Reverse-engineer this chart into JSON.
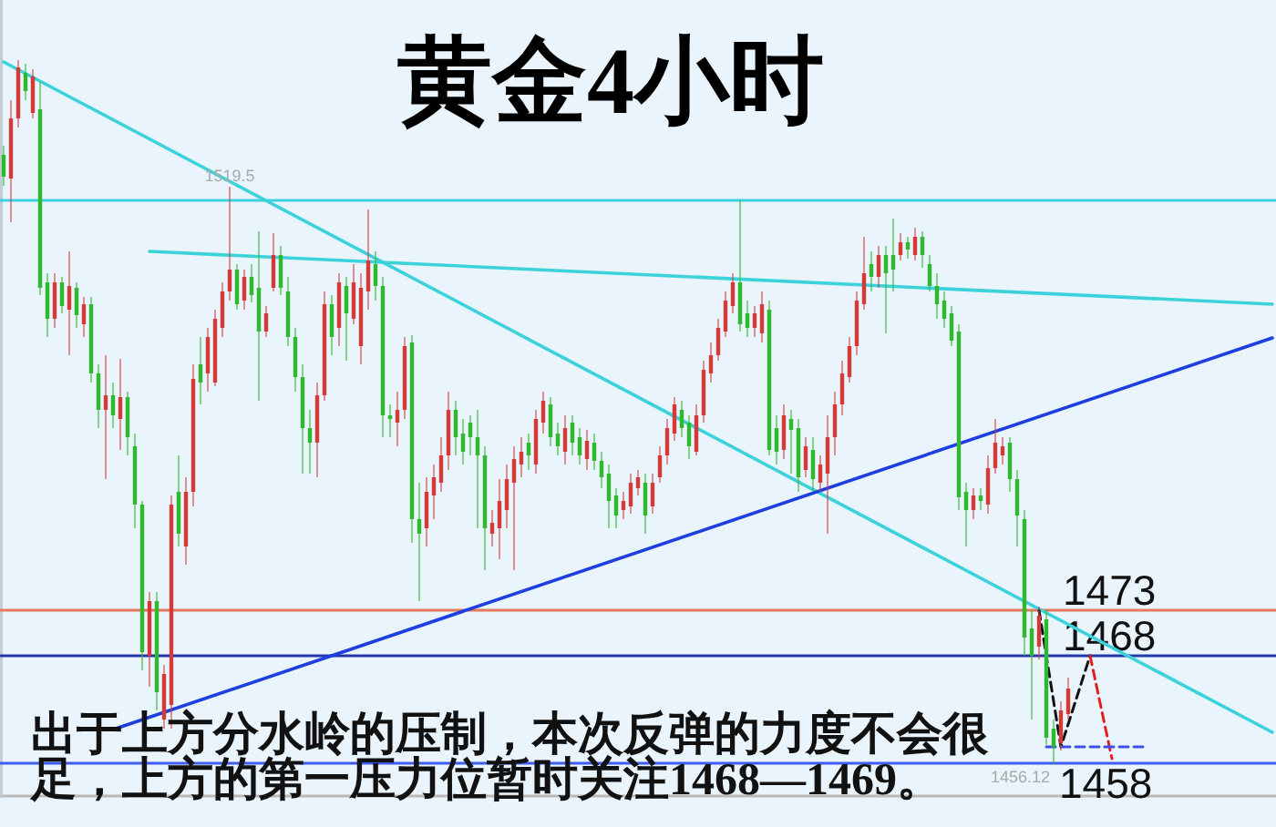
{
  "chart_data": {
    "type": "candlestick",
    "title": "黄金4小时",
    "categories": [
      null,
      null,
      null,
      null,
      null,
      null,
      null,
      null,
      null,
      null,
      null,
      null,
      null,
      null,
      null,
      null,
      null,
      null,
      null,
      null,
      null,
      null,
      null,
      null,
      null,
      null,
      null,
      null,
      null,
      null,
      null,
      null,
      null,
      null,
      null,
      null,
      null,
      null,
      null,
      null,
      null,
      null,
      null,
      null,
      null,
      null,
      null,
      null,
      null,
      null,
      null,
      null,
      null,
      null,
      null,
      null,
      null,
      null,
      null,
      null,
      null,
      null,
      null,
      null,
      null,
      null,
      null,
      null,
      null,
      null,
      null,
      null,
      null,
      null,
      null,
      null,
      null,
      null,
      null,
      null,
      null,
      null,
      null,
      null,
      null,
      null,
      null,
      null,
      null,
      null,
      null,
      null,
      null,
      null,
      null,
      null,
      null,
      null,
      null,
      null,
      null,
      null,
      null,
      null,
      null,
      null,
      null,
      null,
      null,
      null,
      null,
      null,
      null,
      null,
      null,
      null,
      null,
      null,
      null,
      null,
      null,
      null,
      null,
      null,
      null,
      null,
      null,
      null,
      null,
      null,
      null,
      null,
      null,
      null,
      null,
      null,
      null,
      null,
      null,
      null,
      null,
      null,
      null,
      null,
      null,
      null,
      null,
      null,
      null,
      null,
      null,
      null,
      null,
      null,
      null,
      null,
      null,
      null,
      null,
      null,
      null,
      null,
      null,
      null,
      null,
      null,
      null,
      null,
      null,
      null,
      null,
      null,
      null,
      null,
      null
    ],
    "ohlc": [
      [
        1523.0,
        1524.0,
        1519.6,
        1520.6
      ],
      [
        1520.4,
        1529.0,
        1515.6,
        1527.0
      ],
      [
        1527.0,
        1533.4,
        1526.0,
        1532.6
      ],
      [
        1532.0,
        1533.0,
        1529.0,
        1530.0
      ],
      [
        1527.6,
        1532.4,
        1527.0,
        1531.6
      ],
      [
        1528.0,
        1531.0,
        1507.6,
        1508.4
      ],
      [
        1509.0,
        1510.0,
        1503.0,
        1505.0
      ],
      [
        1505.0,
        1510.0,
        1504.0,
        1509.0
      ],
      [
        1509.0,
        1509.6,
        1505.6,
        1506.4
      ],
      [
        1506.0,
        1512.4,
        1501.0,
        1508.6
      ],
      [
        1508.4,
        1509.0,
        1504.0,
        1505.4
      ],
      [
        1504.4,
        1507.4,
        1503.0,
        1506.6
      ],
      [
        1506.6,
        1507.4,
        1498.0,
        1499.0
      ],
      [
        1499.0,
        1500.0,
        1493.0,
        1495.0
      ],
      [
        1495.0,
        1501.0,
        1487.4,
        1496.6
      ],
      [
        1496.6,
        1498.0,
        1493.0,
        1494.4
      ],
      [
        1494.0,
        1500.6,
        1490.6,
        1496.4
      ],
      [
        1496.4,
        1497.0,
        1490.0,
        1492.0
      ],
      [
        1491.0,
        1492.4,
        1482.0,
        1484.6
      ],
      [
        1484.6,
        1485.0,
        1466.4,
        1468.4
      ],
      [
        1468.0,
        1475.0,
        1464.6,
        1474.0
      ],
      [
        1474.0,
        1475.0,
        1462.0,
        1464.0
      ],
      [
        1461.0,
        1467.0,
        1460.0,
        1466.0
      ],
      [
        1462.6,
        1485.6,
        1460.0,
        1484.6
      ],
      [
        1486.0,
        1490.0,
        1480.0,
        1481.4
      ],
      [
        1480.0,
        1487.6,
        1478.0,
        1486.0
      ],
      [
        1486.0,
        1500.0,
        1484.4,
        1498.4
      ],
      [
        1500.0,
        1503.0,
        1495.6,
        1498.0
      ],
      [
        1499.0,
        1504.0,
        1497.0,
        1503.0
      ],
      [
        1498.0,
        1506.0,
        1497.6,
        1505.0
      ],
      [
        1504.0,
        1509.0,
        1503.0,
        1508.0
      ],
      [
        1508.0,
        1519.5,
        1507.0,
        1510.4
      ],
      [
        1510.4,
        1511.0,
        1506.0,
        1506.6
      ],
      [
        1507.0,
        1510.4,
        1506.0,
        1509.6
      ],
      [
        1509.6,
        1511.0,
        1506.8,
        1507.6
      ],
      [
        1508.4,
        1514.6,
        1496.0,
        1503.6
      ],
      [
        1503.6,
        1506.4,
        1503.0,
        1505.6
      ],
      [
        1508.4,
        1514.4,
        1508.0,
        1512.0
      ],
      [
        1512.0,
        1513.0,
        1507.6,
        1508.4
      ],
      [
        1508.0,
        1509.6,
        1502.0,
        1503.0
      ],
      [
        1503.0,
        1504.0,
        1497.0,
        1498.6
      ],
      [
        1498.6,
        1500.0,
        1488.0,
        1493.0
      ],
      [
        1493.0,
        1495.0,
        1488.0,
        1491.4
      ],
      [
        1491.4,
        1498.0,
        1487.6,
        1496.6
      ],
      [
        1496.6,
        1508.0,
        1496.0,
        1506.6
      ],
      [
        1506.6,
        1507.6,
        1501.0,
        1503.0
      ],
      [
        1504.0,
        1510.0,
        1502.0,
        1509.0
      ],
      [
        1508.6,
        1509.6,
        1500.4,
        1505.6
      ],
      [
        1505.0,
        1511.0,
        1504.4,
        1509.0
      ],
      [
        1502.0,
        1510.0,
        1500.0,
        1508.4
      ],
      [
        1508.0,
        1517.0,
        1506.0,
        1511.4
      ],
      [
        1511.0,
        1512.4,
        1507.0,
        1508.6
      ],
      [
        1508.6,
        1509.6,
        1492.0,
        1494.4
      ],
      [
        1494.4,
        1495.6,
        1492.0,
        1494.0
      ],
      [
        1493.6,
        1497.0,
        1491.0,
        1495.0
      ],
      [
        1495.0,
        1503.0,
        1494.0,
        1502.0
      ],
      [
        1502.4,
        1503.2,
        1480.4,
        1483.0
      ],
      [
        1483.0,
        1487.0,
        1474.0,
        1481.4
      ],
      [
        1482.0,
        1487.6,
        1480.0,
        1486.0
      ],
      [
        1485.6,
        1489.0,
        1483.0,
        1487.6
      ],
      [
        1487.0,
        1492.0,
        1486.0,
        1490.0
      ],
      [
        1490.0,
        1497.0,
        1488.4,
        1495.0
      ],
      [
        1495.0,
        1496.0,
        1490.0,
        1492.0
      ],
      [
        1492.4,
        1494.0,
        1489.0,
        1490.4
      ],
      [
        1493.6,
        1494.4,
        1490.0,
        1492.0
      ],
      [
        1492.0,
        1495.0,
        1482.0,
        1490.0
      ],
      [
        1490.0,
        1491.0,
        1477.4,
        1482.0
      ],
      [
        1481.4,
        1484.0,
        1480.0,
        1482.6
      ],
      [
        1482.0,
        1487.4,
        1478.6,
        1485.0
      ],
      [
        1484.0,
        1489.0,
        1482.0,
        1487.4
      ],
      [
        1487.0,
        1491.0,
        1477.4,
        1489.6
      ],
      [
        1489.0,
        1492.0,
        1487.6,
        1490.4
      ],
      [
        1491.4,
        1492.4,
        1488.4,
        1490.0
      ],
      [
        1489.0,
        1495.0,
        1488.0,
        1494.0
      ],
      [
        1493.6,
        1497.0,
        1492.4,
        1496.0
      ],
      [
        1495.6,
        1496.4,
        1491.0,
        1492.0
      ],
      [
        1492.4,
        1493.6,
        1490.0,
        1491.0
      ],
      [
        1490.4,
        1494.4,
        1489.0,
        1493.0
      ],
      [
        1493.6,
        1494.4,
        1490.0,
        1491.4
      ],
      [
        1492.0,
        1493.0,
        1489.0,
        1490.0
      ],
      [
        1489.6,
        1492.8,
        1488.4,
        1491.6
      ],
      [
        1491.4,
        1492.4,
        1488.4,
        1489.4
      ],
      [
        1489.4,
        1490.4,
        1486.4,
        1487.6
      ],
      [
        1488.0,
        1489.0,
        1482.0,
        1485.0
      ],
      [
        1485.6,
        1486.4,
        1482.0,
        1483.4
      ],
      [
        1484.0,
        1486.0,
        1483.0,
        1485.0
      ],
      [
        1484.4,
        1488.0,
        1483.6,
        1487.0
      ],
      [
        1486.4,
        1488.4,
        1485.6,
        1487.6
      ],
      [
        1487.0,
        1488.0,
        1481.4,
        1483.4
      ],
      [
        1484.4,
        1488.0,
        1483.6,
        1487.0
      ],
      [
        1487.6,
        1491.0,
        1487.0,
        1490.0
      ],
      [
        1490.0,
        1494.0,
        1489.0,
        1493.0
      ],
      [
        1492.4,
        1496.4,
        1491.6,
        1495.6
      ],
      [
        1495.0,
        1496.0,
        1492.0,
        1493.0
      ],
      [
        1493.6,
        1494.4,
        1489.6,
        1491.0
      ],
      [
        1490.4,
        1495.6,
        1490.0,
        1494.4
      ],
      [
        1494.4,
        1500.4,
        1493.6,
        1499.4
      ],
      [
        1499.0,
        1502.4,
        1498.0,
        1501.0
      ],
      [
        1501.0,
        1505.0,
        1500.4,
        1504.0
      ],
      [
        1503.6,
        1508.0,
        1503.0,
        1507.0
      ],
      [
        1506.4,
        1510.0,
        1505.6,
        1509.0
      ],
      [
        1509.0,
        1518.0,
        1503.6,
        1504.4
      ],
      [
        1505.6,
        1507.0,
        1503.0,
        1504.0
      ],
      [
        1504.0,
        1506.4,
        1503.0,
        1505.6
      ],
      [
        1503.4,
        1508.0,
        1502.4,
        1506.6
      ],
      [
        1506.0,
        1507.0,
        1490.0,
        1490.6
      ],
      [
        1493.0,
        1494.4,
        1489.0,
        1490.4
      ],
      [
        1490.6,
        1495.6,
        1489.6,
        1494.4
      ],
      [
        1494.0,
        1495.0,
        1488.0,
        1492.8
      ],
      [
        1493.0,
        1494.0,
        1486.0,
        1487.6
      ],
      [
        1488.4,
        1492.0,
        1487.6,
        1491.0
      ],
      [
        1490.6,
        1492.0,
        1486.0,
        1487.4
      ],
      [
        1487.0,
        1490.0,
        1486.0,
        1489.0
      ],
      [
        1488.0,
        1494.4,
        1481.4,
        1492.0
      ],
      [
        1492.0,
        1497.0,
        1490.0,
        1495.6
      ],
      [
        1495.6,
        1500.4,
        1494.4,
        1499.0
      ],
      [
        1498.6,
        1503.0,
        1498.0,
        1502.0
      ],
      [
        1502.0,
        1508.0,
        1501.0,
        1507.0
      ],
      [
        1506.6,
        1514.0,
        1506.0,
        1510.0
      ],
      [
        1511.0,
        1512.4,
        1508.0,
        1509.6
      ],
      [
        1509.6,
        1513.0,
        1508.4,
        1512.0
      ],
      [
        1512.0,
        1513.0,
        1503.4,
        1510.0
      ],
      [
        1512.0,
        1516.0,
        1508.0,
        1510.4
      ],
      [
        1512.0,
        1514.4,
        1511.4,
        1513.4
      ],
      [
        1513.4,
        1514.0,
        1511.6,
        1512.6
      ],
      [
        1512.0,
        1515.0,
        1511.4,
        1514.0
      ],
      [
        1514.0,
        1514.6,
        1510.6,
        1512.0
      ],
      [
        1511.0,
        1512.0,
        1508.0,
        1508.6
      ],
      [
        1508.6,
        1510.0,
        1505.0,
        1506.6
      ],
      [
        1507.0,
        1508.0,
        1504.0,
        1505.0
      ],
      [
        1505.6,
        1506.4,
        1502.0,
        1502.6
      ],
      [
        1503.6,
        1504.4,
        1484.0,
        1485.4
      ],
      [
        1486.0,
        1487.0,
        1480.0,
        1484.0
      ],
      [
        1484.0,
        1486.4,
        1483.0,
        1485.6
      ],
      [
        1485.6,
        1486.4,
        1484.0,
        1485.0
      ],
      [
        1484.6,
        1490.0,
        1483.6,
        1488.6
      ],
      [
        1488.6,
        1494.0,
        1488.0,
        1491.4
      ],
      [
        1490.0,
        1492.0,
        1489.0,
        1491.0
      ],
      [
        1491.4,
        1492.0,
        1486.0,
        1487.4
      ],
      [
        1487.4,
        1488.4,
        1480.0,
        1483.4
      ],
      [
        1483.0,
        1484.0,
        1468.0,
        1470.0
      ],
      [
        1471.0,
        1473.0,
        1461.0,
        1468.0
      ],
      [
        1469.0,
        1473.4,
        1467.6,
        1472.4
      ],
      [
        1472.0,
        1473.0,
        1458.2,
        1459.0
      ],
      [
        1460.0,
        1461.0,
        1456.12,
        1458.0
      ],
      [
        1458.4,
        1463.0,
        1457.6,
        1462.0
      ],
      [
        1461.6,
        1465.6,
        1461.0,
        1464.4
      ],
      null,
      null,
      null,
      null,
      null,
      null,
      null,
      null,
      null,
      null,
      null,
      null,
      null,
      null,
      null,
      null,
      null,
      null,
      null,
      null,
      null,
      null,
      null,
      null,
      null,
      null,
      null,
      null
    ],
    "colors": [
      "#2fb82f",
      "#d23a3a",
      "#d23a3a",
      "#2fb82f",
      "#d23a3a",
      "#2fb82f",
      "#2fb82f",
      "#d23a3a",
      "#2fb82f",
      "#d23a3a",
      "#2fb82f",
      "#d23a3a",
      "#2fb82f",
      "#2fb82f",
      "#d23a3a",
      "#2fb82f",
      "#d23a3a",
      "#2fb82f",
      "#2fb82f",
      "#2fb82f",
      "#d23a3a",
      "#2fb82f",
      "#d23a3a",
      "#d23a3a",
      "#2fb82f",
      "#d23a3a",
      "#d23a3a",
      "#2fb82f",
      "#d23a3a",
      "#d23a3a",
      "#d23a3a",
      "#d23a3a",
      "#2fb82f",
      "#d23a3a",
      "#2fb82f",
      "#2fb82f",
      "#d23a3a",
      "#d23a3a",
      "#2fb82f",
      "#2fb82f",
      "#2fb82f",
      "#2fb82f",
      "#2fb82f",
      "#d23a3a",
      "#d23a3a",
      "#2fb82f",
      "#d23a3a",
      "#2fb82f",
      "#d23a3a",
      "#d23a3a",
      "#d23a3a",
      "#2fb82f",
      "#2fb82f",
      "#2fb82f",
      "#d23a3a",
      "#d23a3a",
      "#2fb82f",
      "#2fb82f",
      "#d23a3a",
      "#d23a3a",
      "#d23a3a",
      "#d23a3a",
      "#2fb82f",
      "#2fb82f",
      "#2fb82f",
      "#2fb82f",
      "#2fb82f",
      "#d23a3a",
      "#d23a3a",
      "#d23a3a",
      "#d23a3a",
      "#d23a3a",
      "#2fb82f",
      "#d23a3a",
      "#d23a3a",
      "#2fb82f",
      "#2fb82f",
      "#d23a3a",
      "#2fb82f",
      "#2fb82f",
      "#d23a3a",
      "#2fb82f",
      "#2fb82f",
      "#2fb82f",
      "#2fb82f",
      "#d23a3a",
      "#d23a3a",
      "#d23a3a",
      "#2fb82f",
      "#d23a3a",
      "#d23a3a",
      "#d23a3a",
      "#d23a3a",
      "#2fb82f",
      "#2fb82f",
      "#d23a3a",
      "#d23a3a",
      "#d23a3a",
      "#d23a3a",
      "#d23a3a",
      "#d23a3a",
      "#2fb82f",
      "#2fb82f",
      "#d23a3a",
      "#d23a3a",
      "#2fb82f",
      "#2fb82f",
      "#d23a3a",
      "#2fb82f",
      "#2fb82f",
      "#d23a3a",
      "#2fb82f",
      "#d23a3a",
      "#d23a3a",
      "#d23a3a",
      "#d23a3a",
      "#d23a3a",
      "#d23a3a",
      "#d23a3a",
      "#2fb82f",
      "#d23a3a",
      "#2fb82f",
      "#2fb82f",
      "#d23a3a",
      "#2fb82f",
      "#d23a3a",
      "#2fb82f",
      "#2fb82f",
      "#2fb82f",
      "#2fb82f",
      "#2fb82f",
      "#2fb82f",
      "#2fb82f",
      "#d23a3a",
      "#2fb82f",
      "#d23a3a",
      "#d23a3a",
      "#d23a3a",
      "#2fb82f",
      "#2fb82f",
      "#2fb82f",
      "#2fb82f",
      "#d23a3a",
      "#2fb82f",
      "#2fb82f",
      "#d23a3a",
      "#d23a3a",
      null,
      null,
      null,
      null,
      null,
      null,
      null,
      null,
      null,
      null,
      null,
      null,
      null,
      null,
      null,
      null,
      null,
      null,
      null,
      null,
      null,
      null,
      null,
      null,
      null,
      null,
      null,
      null
    ],
    "series": [
      {
        "type": "line",
        "color": "#3cd2dc",
        "values": [
          1533.2,
          null,
          null,
          null,
          null,
          null,
          null,
          null,
          null,
          null,
          null,
          null,
          null,
          null,
          null,
          null,
          null,
          null,
          null,
          null,
          null,
          null,
          null,
          null,
          null,
          null,
          null,
          null,
          null,
          null,
          null,
          null,
          null,
          null,
          null,
          null,
          null,
          null,
          null,
          null,
          null,
          null,
          null,
          null,
          null,
          null,
          null,
          null,
          null,
          null,
          null,
          null,
          null,
          null,
          null,
          null,
          null,
          null,
          null,
          null,
          null,
          null,
          null,
          null,
          null,
          null,
          null,
          null,
          null,
          null,
          null,
          null,
          null,
          null,
          null,
          null,
          null,
          null,
          null,
          null,
          null,
          null,
          null,
          null,
          null,
          null,
          null,
          null,
          null,
          null,
          null,
          null,
          null,
          null,
          null,
          null,
          null,
          null,
          null,
          null,
          null,
          null,
          null,
          null,
          null,
          null,
          null,
          null,
          null,
          null,
          null,
          null,
          null,
          null,
          null,
          null,
          null,
          null,
          null,
          null,
          null,
          null,
          null,
          null,
          null,
          null,
          null,
          null,
          null,
          null,
          null,
          null,
          null,
          null,
          null,
          null,
          null,
          null,
          null,
          null,
          null,
          null,
          null,
          null,
          null,
          null,
          null,
          null,
          null,
          null,
          null,
          null,
          null,
          null,
          null,
          null,
          null,
          null,
          null,
          null,
          null,
          null,
          null,
          null,
          null,
          null,
          null,
          null,
          null,
          null,
          null,
          null,
          null,
          null,
          1459.6
        ]
      },
      {
        "type": "line",
        "color": "#3cd2dc",
        "values": [
          null,
          null,
          null,
          null,
          null,
          null,
          null,
          null,
          null,
          null,
          null,
          null,
          null,
          null,
          null,
          null,
          null,
          null,
          null,
          null,
          1512.4,
          null,
          null,
          null,
          null,
          null,
          null,
          null,
          null,
          null,
          null,
          null,
          null,
          null,
          null,
          null,
          null,
          null,
          null,
          null,
          null,
          null,
          null,
          null,
          null,
          null,
          null,
          null,
          null,
          null,
          null,
          null,
          null,
          null,
          null,
          null,
          null,
          null,
          null,
          null,
          null,
          null,
          null,
          null,
          null,
          null,
          null,
          null,
          null,
          null,
          null,
          null,
          null,
          null,
          null,
          null,
          null,
          null,
          null,
          null,
          null,
          null,
          null,
          null,
          null,
          null,
          null,
          null,
          null,
          null,
          null,
          null,
          null,
          null,
          null,
          null,
          null,
          null,
          null,
          null,
          null,
          null,
          null,
          null,
          null,
          null,
          null,
          null,
          null,
          null,
          null,
          null,
          null,
          null,
          null,
          null,
          null,
          null,
          null,
          null,
          null,
          null,
          null,
          null,
          null,
          null,
          null,
          null,
          null,
          null,
          null,
          null,
          null,
          null,
          null,
          null,
          null,
          null,
          null,
          null,
          null,
          null,
          null,
          null,
          null,
          null,
          null,
          null,
          null,
          null,
          null,
          null,
          null,
          null,
          null,
          null,
          null,
          null,
          null,
          null,
          null,
          null,
          null,
          null,
          null,
          null,
          null,
          null,
          null,
          null,
          null,
          null,
          null,
          null,
          1506.6
        ]
      },
      {
        "type": "line",
        "color": "#1d3fe0",
        "values": [
          null,
          null,
          null,
          null,
          null,
          null,
          null,
          null,
          null,
          null,
          null,
          null,
          null,
          null,
          null,
          1459.9,
          null,
          null,
          null,
          null,
          null,
          null,
          null,
          null,
          null,
          null,
          null,
          null,
          null,
          null,
          null,
          null,
          null,
          null,
          null,
          null,
          null,
          null,
          null,
          null,
          null,
          null,
          null,
          null,
          null,
          null,
          null,
          null,
          null,
          null,
          null,
          null,
          null,
          null,
          null,
          null,
          null,
          null,
          null,
          null,
          null,
          null,
          null,
          null,
          null,
          null,
          null,
          null,
          null,
          null,
          null,
          null,
          null,
          null,
          null,
          null,
          null,
          null,
          null,
          null,
          null,
          null,
          null,
          null,
          null,
          null,
          null,
          null,
          null,
          null,
          null,
          null,
          null,
          null,
          null,
          null,
          null,
          null,
          null,
          null,
          null,
          null,
          null,
          null,
          null,
          null,
          null,
          null,
          null,
          null,
          null,
          null,
          null,
          null,
          null,
          null,
          null,
          null,
          null,
          null,
          null,
          null,
          null,
          null,
          null,
          null,
          null,
          null,
          null,
          null,
          null,
          null,
          null,
          null,
          null,
          null,
          null,
          null,
          null,
          null,
          null,
          null,
          null,
          null,
          null,
          null,
          null,
          null,
          null,
          null,
          null,
          null,
          null,
          null,
          null,
          null,
          null,
          null,
          null,
          null,
          null,
          null,
          null,
          null,
          null,
          null,
          null,
          null,
          null,
          null,
          null,
          null,
          null,
          null,
          1502.9
        ]
      },
      {
        "type": "line",
        "color": "#111111",
        "line_style": "dashed",
        "values": [
          null,
          null,
          null,
          null,
          null,
          null,
          null,
          null,
          null,
          null,
          null,
          null,
          null,
          null,
          null,
          null,
          null,
          null,
          null,
          null,
          null,
          null,
          null,
          null,
          null,
          null,
          null,
          null,
          null,
          null,
          null,
          null,
          null,
          null,
          null,
          null,
          null,
          null,
          null,
          null,
          null,
          null,
          null,
          null,
          null,
          null,
          null,
          null,
          null,
          null,
          null,
          null,
          null,
          null,
          null,
          null,
          null,
          null,
          null,
          null,
          null,
          null,
          null,
          null,
          null,
          null,
          null,
          null,
          null,
          null,
          null,
          null,
          null,
          null,
          null,
          null,
          null,
          null,
          null,
          null,
          null,
          null,
          null,
          null,
          null,
          null,
          null,
          null,
          null,
          null,
          null,
          null,
          null,
          null,
          null,
          null,
          null,
          null,
          null,
          null,
          null,
          null,
          null,
          null,
          null,
          null,
          null,
          null,
          null,
          null,
          null,
          null,
          null,
          null,
          null,
          null,
          null,
          null,
          null,
          null,
          null,
          null,
          null,
          null,
          null,
          null,
          null,
          null,
          null,
          null,
          null,
          null,
          null,
          null,
          null,
          null,
          null,
          null,
          null,
          null,
          null,
          null,
          1473,
          null,
          null,
          1458,
          null,
          null,
          null,
          1468,
          null,
          null,
          null,
          null,
          null,
          null,
          null,
          null,
          null,
          null,
          null,
          null,
          null,
          null,
          null,
          null,
          null,
          null,
          null,
          null,
          null,
          null,
          null,
          null,
          null
        ]
      },
      {
        "type": "line",
        "color": "#e02020",
        "line_style": "dashed",
        "values": [
          null,
          null,
          null,
          null,
          null,
          null,
          null,
          null,
          null,
          null,
          null,
          null,
          null,
          null,
          null,
          null,
          null,
          null,
          null,
          null,
          null,
          null,
          null,
          null,
          null,
          null,
          null,
          null,
          null,
          null,
          null,
          null,
          null,
          null,
          null,
          null,
          null,
          null,
          null,
          null,
          null,
          null,
          null,
          null,
          null,
          null,
          null,
          null,
          null,
          null,
          null,
          null,
          null,
          null,
          null,
          null,
          null,
          null,
          null,
          null,
          null,
          null,
          null,
          null,
          null,
          null,
          null,
          null,
          null,
          null,
          null,
          null,
          null,
          null,
          null,
          null,
          null,
          null,
          null,
          null,
          null,
          null,
          null,
          null,
          null,
          null,
          null,
          null,
          null,
          null,
          null,
          null,
          null,
          null,
          null,
          null,
          null,
          null,
          null,
          null,
          null,
          null,
          null,
          null,
          null,
          null,
          null,
          null,
          null,
          null,
          null,
          null,
          null,
          null,
          null,
          null,
          null,
          null,
          null,
          null,
          null,
          null,
          null,
          null,
          null,
          null,
          null,
          null,
          null,
          null,
          null,
          null,
          null,
          null,
          null,
          null,
          null,
          null,
          null,
          null,
          null,
          null,
          null,
          null,
          null,
          null,
          null,
          null,
          null,
          1468,
          null,
          null,
          1456.7,
          null,
          null,
          null,
          null,
          null,
          null,
          null,
          null,
          null,
          null,
          null,
          null,
          null,
          null,
          null,
          null,
          null,
          null,
          null,
          null,
          null,
          null
        ]
      },
      {
        "type": "line",
        "color": "#3a4ee8",
        "line_style": "dashed",
        "values": [
          null,
          null,
          null,
          null,
          null,
          null,
          null,
          null,
          null,
          null,
          null,
          null,
          null,
          null,
          null,
          null,
          null,
          null,
          null,
          null,
          null,
          null,
          null,
          null,
          null,
          null,
          null,
          null,
          null,
          null,
          null,
          null,
          null,
          null,
          null,
          null,
          null,
          null,
          null,
          null,
          null,
          null,
          null,
          null,
          null,
          null,
          null,
          null,
          null,
          null,
          null,
          null,
          null,
          null,
          null,
          null,
          null,
          null,
          null,
          null,
          null,
          null,
          null,
          null,
          null,
          null,
          null,
          null,
          null,
          null,
          null,
          null,
          null,
          null,
          null,
          null,
          null,
          null,
          null,
          null,
          null,
          null,
          null,
          null,
          null,
          null,
          null,
          null,
          null,
          null,
          null,
          null,
          null,
          null,
          null,
          null,
          null,
          null,
          null,
          null,
          null,
          null,
          null,
          null,
          null,
          null,
          null,
          null,
          null,
          null,
          null,
          null,
          null,
          null,
          null,
          null,
          null,
          null,
          null,
          null,
          null,
          null,
          null,
          null,
          null,
          null,
          null,
          null,
          null,
          null,
          null,
          null,
          null,
          null,
          null,
          null,
          null,
          null,
          null,
          null,
          null,
          null,
          null,
          1458,
          null,
          null,
          null,
          null,
          null,
          null,
          null,
          null,
          null,
          null,
          null,
          null,
          null,
          1458,
          null,
          null,
          null,
          null,
          null,
          null,
          null,
          null,
          null,
          null,
          null,
          null,
          null,
          null,
          null,
          null,
          null
        ]
      }
    ],
    "ref_lines": [
      {
        "axis": "y",
        "value": 1518,
        "color": "#3cd2dc"
      },
      {
        "axis": "y",
        "value": 1473,
        "label": "1473",
        "color": "#e8785c"
      },
      {
        "axis": "y",
        "value": 1468,
        "label": "1468",
        "color": "#2238a8"
      },
      {
        "axis": "y",
        "value": 1456.2,
        "color": "#3f5cf0"
      }
    ],
    "annotations": [
      {
        "text": "1519.5",
        "y": 1519.5
      },
      {
        "text": "1456.12",
        "y": 1456.12
      },
      {
        "text": "1458",
        "y": 1458
      },
      "出于上方分水岭的压制，本次反弹的力度不会很足，上方的第一压力位暂时关注1468—1469。"
    ],
    "ylim": [
      1452.6,
      1540
    ]
  }
}
